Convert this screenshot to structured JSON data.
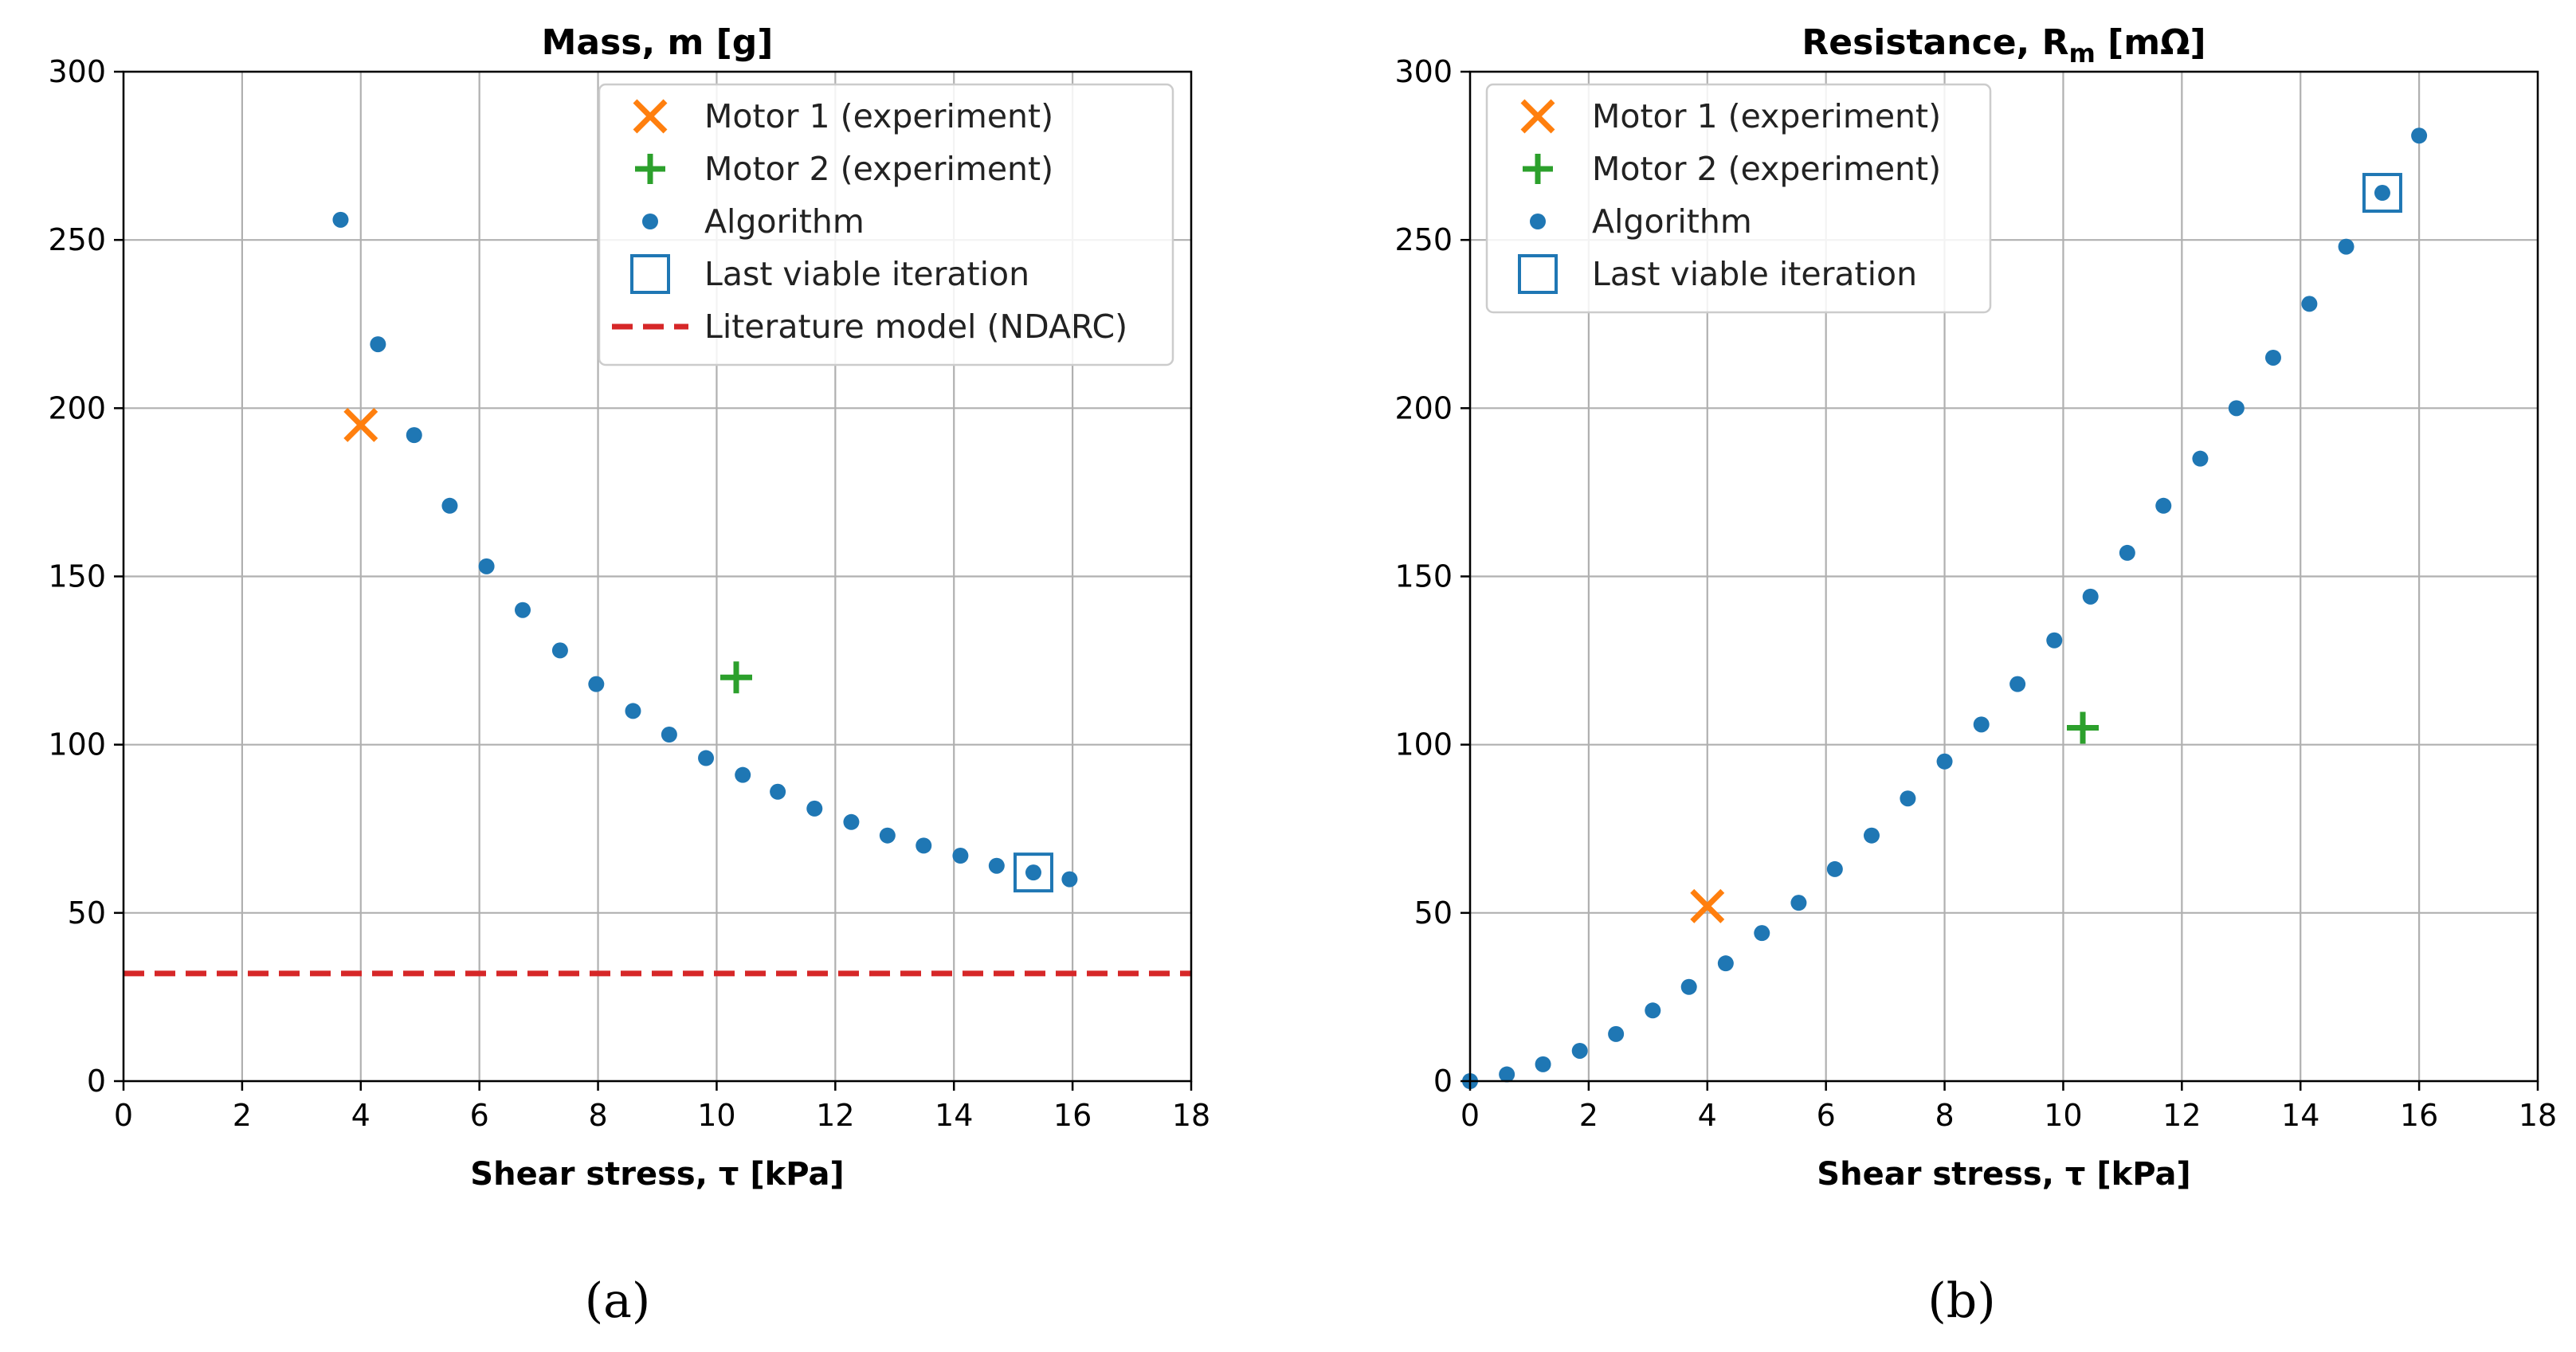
{
  "charts": [
    {
      "type": "scatter",
      "title": "Mass, m [g]",
      "xlabel": "Shear stress, τ [kPa]",
      "ylabel": "",
      "xlim": [
        0,
        18
      ],
      "ylim": [
        0,
        300
      ],
      "xticks": [
        "0",
        "2",
        "4",
        "6",
        "8",
        "10",
        "12",
        "14",
        "16",
        "18"
      ],
      "yticks": [
        "0",
        "50",
        "100",
        "150",
        "200",
        "250",
        "300"
      ],
      "grid": true,
      "legend_position": "top-right",
      "sublabel": "(a)",
      "legend": [
        {
          "label": "Motor 1 (experiment)",
          "marker": "x",
          "color": "#ff7f0e"
        },
        {
          "label": "Motor 2 (experiment)",
          "marker": "plus",
          "color": "#2ca02c"
        },
        {
          "label": "Algorithm",
          "marker": "dot",
          "color": "#1f77b4"
        },
        {
          "label": "Last viable iteration",
          "marker": "square",
          "color": "#1f77b4"
        },
        {
          "label": "Literature model (NDARC)",
          "marker": "dash",
          "color": "#d62728"
        }
      ],
      "algorithm": {
        "x": [
          3.66,
          4.29,
          4.9,
          5.5,
          6.12,
          6.73,
          7.36,
          7.97,
          8.59,
          9.2,
          9.82,
          10.44,
          11.03,
          11.65,
          12.27,
          12.88,
          13.49,
          14.11,
          14.72,
          15.34,
          15.95
        ],
        "y": [
          256,
          219,
          192,
          171,
          153,
          140,
          128,
          118,
          110,
          103,
          96,
          91,
          86,
          81,
          77,
          73,
          70,
          67,
          64,
          62,
          60
        ]
      },
      "motor1": {
        "x": 4.0,
        "y": 195
      },
      "motor2": {
        "x": 10.33,
        "y": 120
      },
      "last_viable": {
        "x": 15.34,
        "y": 62
      },
      "literature_y": 32
    },
    {
      "type": "scatter",
      "title": "Resistance, R",
      "title_sub": "m",
      "title_unit": " [mΩ]",
      "xlabel": "Shear stress, τ [kPa]",
      "ylabel": "",
      "xlim": [
        0,
        18
      ],
      "ylim": [
        0,
        300
      ],
      "xticks": [
        "0",
        "2",
        "4",
        "6",
        "8",
        "10",
        "12",
        "14",
        "16",
        "18"
      ],
      "yticks": [
        "0",
        "50",
        "100",
        "150",
        "200",
        "250",
        "300"
      ],
      "grid": true,
      "legend_position": "top-left",
      "sublabel": "(b)",
      "legend": [
        {
          "label": "Motor 1 (experiment)",
          "marker": "x",
          "color": "#ff7f0e"
        },
        {
          "label": "Motor 2 (experiment)",
          "marker": "plus",
          "color": "#2ca02c"
        },
        {
          "label": "Algorithm",
          "marker": "dot",
          "color": "#1f77b4"
        },
        {
          "label": "Last viable iteration",
          "marker": "square",
          "color": "#1f77b4"
        }
      ],
      "algorithm": {
        "x": [
          0.0,
          0.62,
          1.23,
          1.85,
          2.46,
          3.08,
          3.69,
          4.31,
          4.92,
          5.54,
          6.15,
          6.77,
          7.38,
          8.0,
          8.62,
          9.23,
          9.85,
          10.46,
          11.08,
          11.69,
          12.31,
          12.92,
          13.54,
          14.15,
          14.77,
          15.38,
          16.0
        ],
        "y": [
          0,
          2,
          5,
          9,
          14,
          21,
          28,
          35,
          44,
          53,
          63,
          73,
          84,
          95,
          106,
          118,
          131,
          144,
          157,
          171,
          185,
          200,
          215,
          231,
          248,
          264,
          281
        ]
      },
      "motor1": {
        "x": 4.0,
        "y": 52
      },
      "motor2": {
        "x": 10.33,
        "y": 105
      },
      "last_viable": {
        "x": 15.38,
        "y": 264
      }
    }
  ]
}
